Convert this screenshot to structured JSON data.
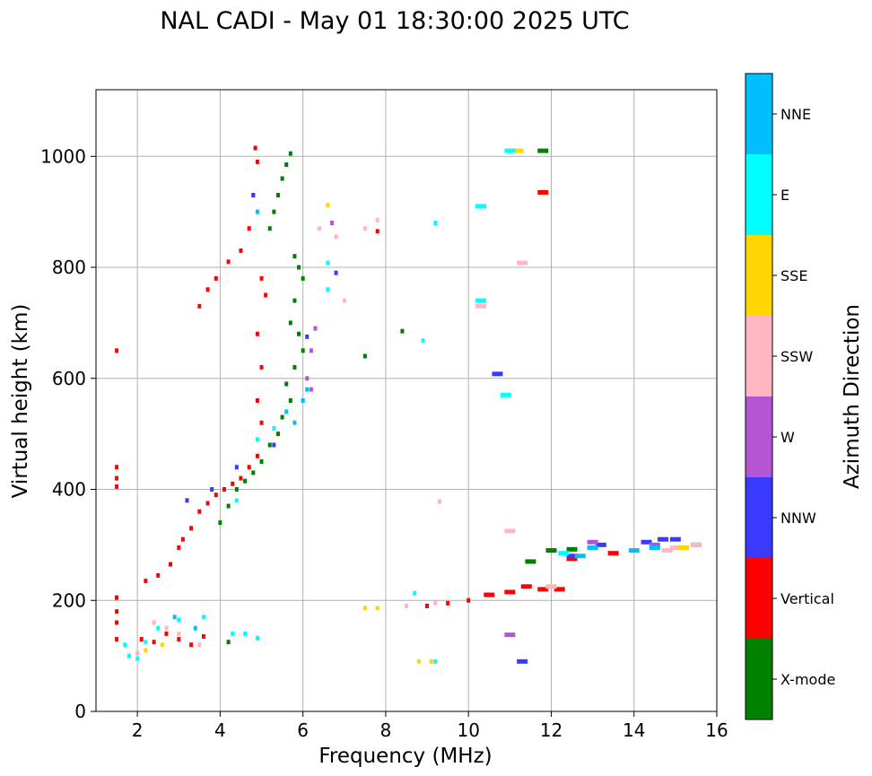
{
  "chart_data": {
    "type": "scatter",
    "title": "NAL CADI - May 01 18:30:00 2025 UTC",
    "xlabel": "Frequency (MHz)",
    "ylabel": "Virtual height (km)",
    "xlim": [
      1,
      16
    ],
    "ylim": [
      0,
      1120
    ],
    "xticks": [
      2,
      4,
      6,
      8,
      10,
      12,
      14,
      16
    ],
    "yticks": [
      0,
      200,
      400,
      600,
      800,
      1000
    ],
    "grid": true,
    "colorbar": {
      "label": "Azimuth Direction",
      "categories": [
        "X-mode",
        "Vertical",
        "NNW",
        "W",
        "SSW",
        "SSE",
        "E",
        "NNE"
      ],
      "colors": [
        "#008000",
        "#ff0000",
        "#3a3aff",
        "#b455d6",
        "#ffb6c1",
        "#ffd700",
        "#00ffff",
        "#00bfff"
      ]
    },
    "series": [
      {
        "name": "X-mode",
        "points": [
          [
            5.7,
            1005
          ],
          [
            5.6,
            985
          ],
          [
            5.5,
            960
          ],
          [
            5.4,
            930
          ],
          [
            5.3,
            900
          ],
          [
            5.2,
            870
          ],
          [
            5.8,
            820
          ],
          [
            5.9,
            800
          ],
          [
            6.0,
            780
          ],
          [
            5.8,
            740
          ],
          [
            5.7,
            700
          ],
          [
            5.9,
            680
          ],
          [
            6.0,
            650
          ],
          [
            5.8,
            620
          ],
          [
            5.6,
            590
          ],
          [
            5.7,
            560
          ],
          [
            5.5,
            530
          ],
          [
            5.4,
            500
          ],
          [
            5.2,
            480
          ],
          [
            5.0,
            450
          ],
          [
            4.8,
            430
          ],
          [
            4.6,
            415
          ],
          [
            4.4,
            400
          ],
          [
            4.2,
            370
          ],
          [
            4.0,
            340
          ],
          [
            11.8,
            1010
          ],
          [
            8.4,
            685
          ],
          [
            7.5,
            640
          ],
          [
            12.0,
            290
          ],
          [
            12.5,
            292
          ],
          [
            15.5,
            300
          ],
          [
            11.5,
            270
          ],
          [
            4.2,
            125
          ],
          [
            9.0,
            190
          ]
        ]
      },
      {
        "name": "Vertical",
        "points": [
          [
            1.5,
            650
          ],
          [
            1.5,
            440
          ],
          [
            1.5,
            420
          ],
          [
            1.5,
            405
          ],
          [
            1.5,
            205
          ],
          [
            1.5,
            180
          ],
          [
            1.5,
            160
          ],
          [
            1.5,
            130
          ],
          [
            2.1,
            130
          ],
          [
            2.4,
            125
          ],
          [
            2.7,
            140
          ],
          [
            3.0,
            130
          ],
          [
            3.3,
            120
          ],
          [
            3.6,
            135
          ],
          [
            2.2,
            235
          ],
          [
            2.5,
            245
          ],
          [
            2.8,
            265
          ],
          [
            3.0,
            295
          ],
          [
            3.1,
            310
          ],
          [
            3.3,
            330
          ],
          [
            3.5,
            360
          ],
          [
            3.7,
            375
          ],
          [
            3.9,
            390
          ],
          [
            4.1,
            400
          ],
          [
            4.3,
            410
          ],
          [
            4.5,
            420
          ],
          [
            4.7,
            440
          ],
          [
            4.9,
            460
          ],
          [
            3.5,
            730
          ],
          [
            3.7,
            760
          ],
          [
            3.9,
            780
          ],
          [
            4.2,
            810
          ],
          [
            4.5,
            830
          ],
          [
            4.7,
            870
          ],
          [
            4.8,
            930
          ],
          [
            4.9,
            990
          ],
          [
            4.85,
            1015
          ],
          [
            5.0,
            780
          ],
          [
            5.1,
            750
          ],
          [
            4.9,
            680
          ],
          [
            5.0,
            620
          ],
          [
            4.9,
            560
          ],
          [
            5.0,
            520
          ],
          [
            11.8,
            935
          ],
          [
            7.8,
            865
          ],
          [
            9.0,
            190
          ],
          [
            9.5,
            195
          ],
          [
            10.0,
            200
          ],
          [
            10.5,
            210
          ],
          [
            11.0,
            215
          ],
          [
            11.4,
            225
          ],
          [
            11.8,
            220
          ],
          [
            12.2,
            220
          ],
          [
            12.5,
            275
          ],
          [
            13.5,
            285
          ]
        ]
      },
      {
        "name": "NNW",
        "points": [
          [
            4.8,
            930
          ],
          [
            6.3,
            690
          ],
          [
            6.8,
            790
          ],
          [
            10.7,
            608
          ],
          [
            11.3,
            90
          ],
          [
            14.3,
            305
          ],
          [
            14.7,
            310
          ],
          [
            13.2,
            300
          ],
          [
            12.5,
            280
          ],
          [
            3.2,
            380
          ],
          [
            3.8,
            400
          ],
          [
            4.4,
            440
          ],
          [
            5.3,
            480
          ],
          [
            6.1,
            675
          ],
          [
            15.0,
            310
          ]
        ]
      },
      {
        "name": "W",
        "points": [
          [
            6.2,
            650
          ],
          [
            6.1,
            600
          ],
          [
            6.2,
            580
          ],
          [
            6.0,
            560
          ],
          [
            6.3,
            690
          ],
          [
            11.0,
            138
          ],
          [
            13.0,
            305
          ],
          [
            6.7,
            880
          ],
          [
            14.5,
            300
          ]
        ]
      },
      {
        "name": "SSW",
        "points": [
          [
            7.5,
            870
          ],
          [
            7.8,
            885
          ],
          [
            6.8,
            855
          ],
          [
            6.4,
            870
          ],
          [
            7.0,
            740
          ],
          [
            10.3,
            730
          ],
          [
            11.3,
            808
          ],
          [
            11.0,
            325
          ],
          [
            9.3,
            378
          ],
          [
            8.5,
            190
          ],
          [
            9.2,
            195
          ],
          [
            12.0,
            225
          ],
          [
            15.0,
            295
          ],
          [
            15.5,
            300
          ],
          [
            14.8,
            290
          ],
          [
            2.4,
            160
          ],
          [
            2.7,
            150
          ],
          [
            2.0,
            105
          ],
          [
            3.0,
            140
          ],
          [
            3.5,
            120
          ]
        ]
      },
      {
        "name": "SSE",
        "points": [
          [
            6.6,
            912
          ],
          [
            7.5,
            186
          ],
          [
            7.8,
            186
          ],
          [
            8.8,
            90
          ],
          [
            9.1,
            90
          ],
          [
            11.2,
            1010
          ],
          [
            15.2,
            295
          ],
          [
            2.2,
            110
          ],
          [
            2.6,
            120
          ]
        ]
      },
      {
        "name": "E",
        "points": [
          [
            3.6,
            170
          ],
          [
            3.0,
            165
          ],
          [
            2.5,
            150
          ],
          [
            2.2,
            125
          ],
          [
            4.3,
            140
          ],
          [
            4.6,
            140
          ],
          [
            4.9,
            132
          ],
          [
            11.0,
            1010
          ],
          [
            10.3,
            910
          ],
          [
            9.2,
            880
          ],
          [
            8.9,
            668
          ],
          [
            10.3,
            740
          ],
          [
            6.6,
            808
          ],
          [
            10.9,
            570
          ],
          [
            9.2,
            90
          ],
          [
            8.7,
            213
          ],
          [
            6.6,
            760
          ],
          [
            1.7,
            120
          ],
          [
            1.8,
            100
          ],
          [
            2.0,
            95
          ],
          [
            4.4,
            380
          ],
          [
            4.9,
            490
          ],
          [
            5.3,
            510
          ],
          [
            12.3,
            285
          ]
        ]
      },
      {
        "name": "NNE",
        "points": [
          [
            4.9,
            900
          ],
          [
            5.6,
            540
          ],
          [
            5.8,
            520
          ],
          [
            6.0,
            560
          ],
          [
            6.1,
            580
          ],
          [
            14.0,
            290
          ],
          [
            14.5,
            295
          ],
          [
            13.0,
            295
          ],
          [
            2.9,
            170
          ],
          [
            3.4,
            150
          ],
          [
            12.7,
            280
          ]
        ]
      }
    ]
  }
}
